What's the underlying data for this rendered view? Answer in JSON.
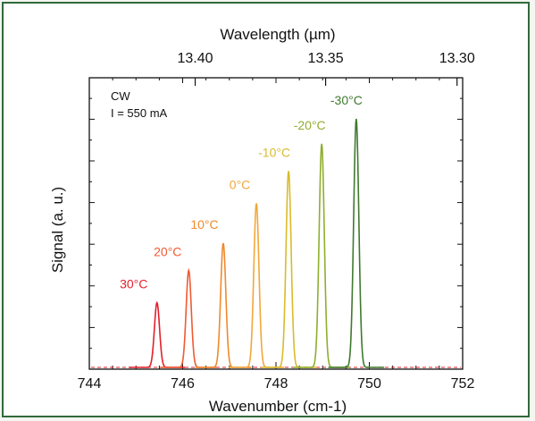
{
  "chart_data": {
    "type": "line",
    "title": "",
    "xlabel": "Wavenumber (cm-1)",
    "ylabel": "Signal (a. u.)",
    "top_axis_label": "Wavelength (µm)",
    "xlim": [
      744,
      752
    ],
    "x_ticks": [
      "744",
      "746",
      "748",
      "750",
      "752"
    ],
    "top_ticks": [
      "13.40",
      "13.35",
      "13.30"
    ],
    "top_tick_values_um": [
      13.4,
      13.35,
      13.3
    ],
    "grid": false,
    "annotations": [
      "CW",
      "I = 550 mA"
    ],
    "series": [
      {
        "name": "30°C",
        "color": "#e3202b",
        "peak_x": 745.45,
        "peak_y": 0.26,
        "fwhm": 0.13
      },
      {
        "name": "20°C",
        "color": "#ef5a32",
        "peak_x": 746.13,
        "peak_y": 0.39,
        "fwhm": 0.13
      },
      {
        "name": "10°C",
        "color": "#ef8a2c",
        "peak_x": 746.87,
        "peak_y": 0.5,
        "fwhm": 0.13
      },
      {
        "name": "0°C",
        "color": "#f0a83a",
        "peak_x": 747.58,
        "peak_y": 0.66,
        "fwhm": 0.13
      },
      {
        "name": "-10°C",
        "color": "#d8bb2c",
        "peak_x": 748.27,
        "peak_y": 0.79,
        "fwhm": 0.13
      },
      {
        "name": "-20°C",
        "color": "#8fae2e",
        "peak_x": 748.98,
        "peak_y": 0.9,
        "fwhm": 0.13
      },
      {
        "name": "-30°C",
        "color": "#3f7a2e",
        "peak_x": 749.72,
        "peak_y": 1.0,
        "fwhm": 0.13
      }
    ]
  }
}
